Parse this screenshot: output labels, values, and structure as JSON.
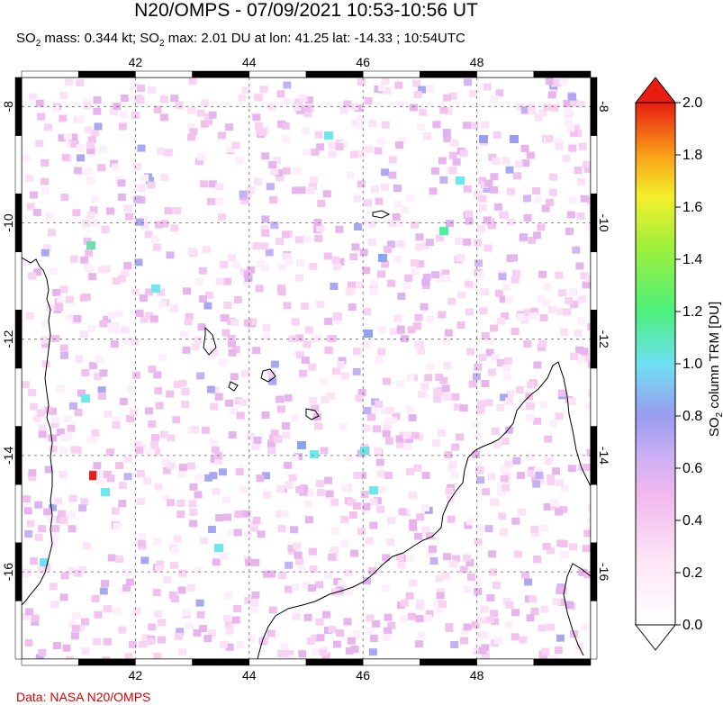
{
  "title": "N20/OMPS - 07/09/2021 10:53-10:56 UT",
  "subtitle": {
    "p1": "SO",
    "sub1": "2",
    "p2": " mass: 0.344 kt; SO",
    "sub2": "2",
    "p3": " max: 2.01 DU at lon: 41.25 lat: -14.33 ; 10:54UTC"
  },
  "credit": "Data: NASA N20/OMPS",
  "map": {
    "lon_range": [
      40,
      50
    ],
    "lat_range": [
      -17.5,
      -7.5
    ],
    "lon_ticks": [
      "42",
      "44",
      "46",
      "48"
    ],
    "lat_ticks": [
      "-8",
      "-10",
      "-12",
      "-14",
      "-16"
    ],
    "max_marker": {
      "lon": 41.25,
      "lat": -14.33,
      "value": 2.01
    }
  },
  "colorbar": {
    "label_p1": "SO",
    "label_sub": "2",
    "label_p2": " column TRM [DU]",
    "ticks": [
      "0.0",
      "0.2",
      "0.4",
      "0.6",
      "0.8",
      "1.0",
      "1.2",
      "1.4",
      "1.6",
      "1.8",
      "2.0"
    ],
    "min": 0.0,
    "max": 2.0
  },
  "colors": {
    "credit": "#d40000",
    "coastline": "#000000",
    "grid": "#666666"
  }
}
